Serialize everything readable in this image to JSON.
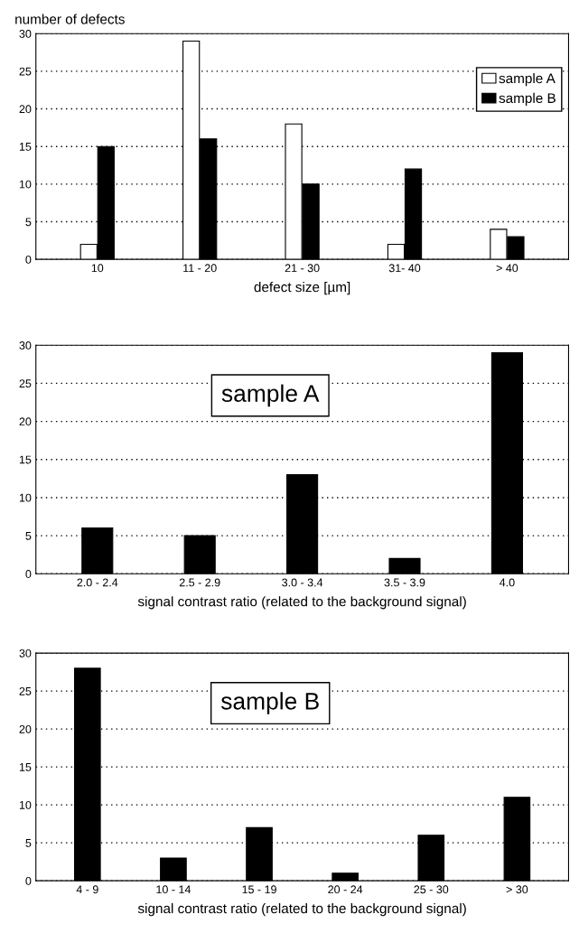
{
  "chart_data": [
    {
      "type": "bar",
      "ylabel": "number of defects",
      "xlabel": "defect size [µm]",
      "categories": [
        "10",
        "11 - 20",
        "21 - 30",
        "31- 40",
        "> 40"
      ],
      "series": [
        {
          "name": "sample A",
          "color": "#ffffff",
          "values": [
            2,
            29,
            18,
            2,
            4
          ]
        },
        {
          "name": "sample B",
          "color": "#000000",
          "values": [
            15,
            16,
            10,
            12,
            3
          ]
        }
      ],
      "ylim": [
        0,
        30
      ],
      "yticks": [
        0,
        5,
        10,
        15,
        20,
        25,
        30
      ],
      "grid": "y",
      "legend": "top right"
    },
    {
      "type": "bar",
      "xlabel": "signal contrast ratio (related to the background signal)",
      "categories": [
        "2.0 - 2.4",
        "2.5 - 2.9",
        "3.0 - 3.4",
        "3.5 - 3.9",
        "4.0"
      ],
      "values": [
        6,
        5,
        13,
        2,
        29
      ],
      "color": "#000000",
      "annotations": [
        "sample A"
      ],
      "ylim": [
        0,
        30
      ],
      "yticks": [
        0,
        5,
        10,
        15,
        20,
        25,
        30
      ],
      "grid": "y"
    },
    {
      "type": "bar",
      "xlabel": "signal contrast ratio (related to the background signal)",
      "categories": [
        "4 - 9",
        "10 - 14",
        "15 - 19",
        "20 - 24",
        "25 - 30",
        "> 30"
      ],
      "values": [
        28,
        3,
        7,
        1,
        6,
        11
      ],
      "color": "#000000",
      "annotations": [
        "sample B"
      ],
      "ylim": [
        0,
        30
      ],
      "yticks": [
        0,
        5,
        10,
        15,
        20,
        25,
        30
      ],
      "grid": "y"
    }
  ]
}
